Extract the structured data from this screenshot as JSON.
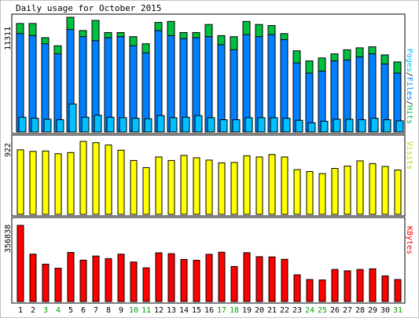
{
  "chart_data": {
    "type": "bar",
    "title": "Daily usage for October 2015",
    "days": [
      "1",
      "2",
      "3",
      "4",
      "5",
      "6",
      "7",
      "8",
      "9",
      "10",
      "11",
      "12",
      "13",
      "14",
      "15",
      "16",
      "17",
      "18",
      "19",
      "20",
      "21",
      "22",
      "23",
      "24",
      "25",
      "26",
      "27",
      "28",
      "29",
      "30",
      "31"
    ],
    "weekend_days": [
      "3",
      "4",
      "10",
      "11",
      "17",
      "18",
      "24",
      "25",
      "31"
    ],
    "panels": [
      {
        "id": "hits",
        "ymax_label": "11311",
        "ymax": 11311,
        "right_label": {
          "pages": "Pages",
          "files": "Files",
          "hits": "Hits",
          "sep": "/"
        },
        "series": [
          {
            "name": "Hits",
            "color": "#00c040",
            "values": [
              10700,
              10700,
              9300,
              8500,
              11311,
              10000,
              11000,
              9800,
              9800,
              9400,
              8700,
              10800,
              10900,
              9800,
              9800,
              10600,
              9500,
              9400,
              10900,
              10600,
              10500,
              9700,
              8000,
              7000,
              7300,
              7700,
              8100,
              8300,
              8400,
              7600,
              6900
            ]
          },
          {
            "name": "Files",
            "color": "#0080ff",
            "values": [
              9700,
              9500,
              8700,
              7700,
              10100,
              9400,
              9000,
              9300,
              9400,
              8500,
              7800,
              10000,
              9500,
              9200,
              9300,
              9400,
              8600,
              8100,
              9600,
              9400,
              9600,
              9100,
              6800,
              5800,
              6000,
              7000,
              7100,
              7400,
              7700,
              6700,
              5800
            ]
          },
          {
            "name": "Pages",
            "color": "#00c0ff",
            "values": [
              1450,
              1350,
              1250,
              1200,
              2750,
              1450,
              1650,
              1450,
              1400,
              1350,
              1300,
              1600,
              1400,
              1450,
              1600,
              1400,
              1200,
              1200,
              1400,
              1400,
              1400,
              1350,
              1150,
              900,
              1050,
              1250,
              1250,
              1200,
              1350,
              1200,
              1100
            ]
          }
        ]
      },
      {
        "id": "visits",
        "ymax_label": "922",
        "ymax": 922,
        "right_label": {
          "visits": "Visits"
        },
        "series": [
          {
            "name": "Visits",
            "color": "#ffff00",
            "values": [
              815,
              795,
              800,
              765,
              780,
              922,
              905,
              875,
              810,
              680,
              590,
              725,
              680,
              745,
              715,
              685,
              650,
              655,
              740,
              725,
              755,
              725,
              565,
              540,
              515,
              580,
              610,
              675,
              640,
              605,
              560
            ]
          }
        ]
      },
      {
        "id": "kbytes",
        "ymax_label": "356838",
        "ymax": 356838,
        "right_label": {
          "kbytes": "KBytes"
        },
        "series": [
          {
            "name": "KBytes",
            "color": "#ff0000",
            "values": [
              356838,
              222000,
              175000,
              156000,
              230000,
              194000,
              213000,
              201000,
              222000,
              185000,
              158000,
              228000,
              224000,
              197000,
              193000,
              221000,
              231000,
              164000,
              229000,
              210000,
              209000,
              198000,
              125000,
              103000,
              101000,
              150000,
              144000,
              150000,
              153000,
              120000,
              103000
            ]
          }
        ]
      }
    ]
  },
  "colors": {
    "weekday": "#000000",
    "weekend": "#00a000",
    "hits_label": "#00c040",
    "files_label": "#0080ff",
    "pages_label": "#00c0ff",
    "visits_label": "#cccc00",
    "kbytes_label": "#ff0000"
  }
}
